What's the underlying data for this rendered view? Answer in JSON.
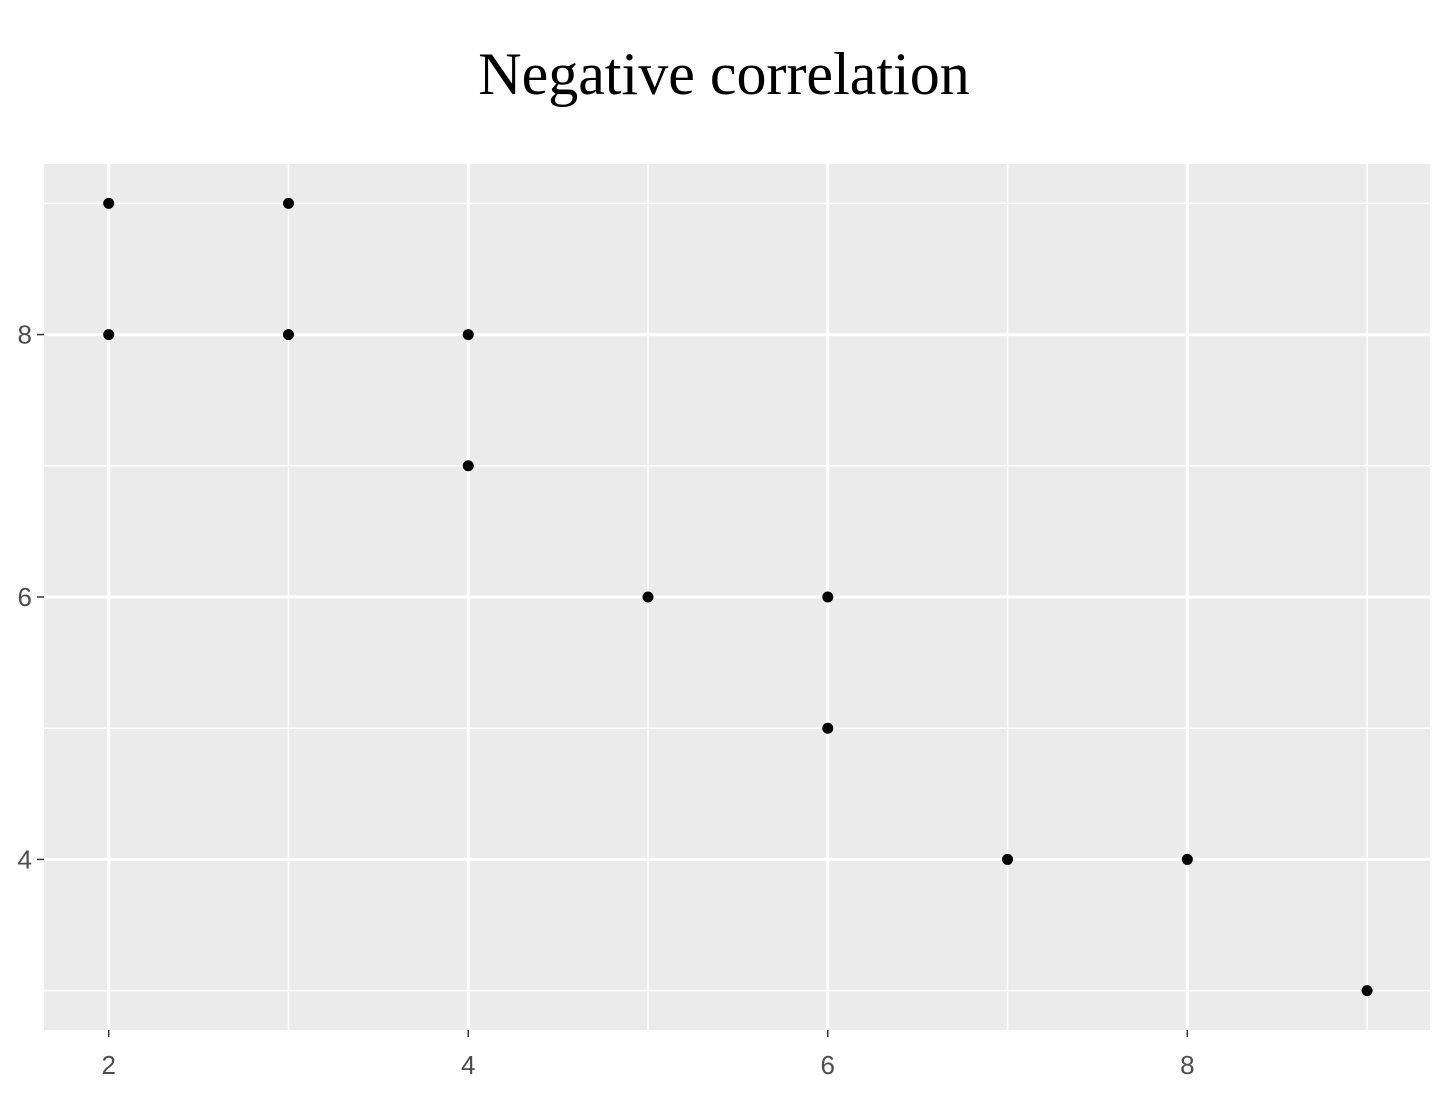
{
  "chart_data": {
    "type": "scatter",
    "title": "Negative correlation",
    "xlabel": "",
    "ylabel": "",
    "xlim": [
      1.64,
      9.35
    ],
    "ylim": [
      2.7,
      9.3
    ],
    "x_ticks": [
      2,
      4,
      6,
      8
    ],
    "y_ticks": [
      4,
      6,
      8
    ],
    "x_tick_labels": [
      "2",
      "4",
      "6",
      "8"
    ],
    "y_tick_labels": [
      "4",
      "6",
      "8"
    ],
    "x_minor_gridlines": [
      3,
      5,
      7,
      9
    ],
    "y_minor_gridlines": [
      3,
      5,
      7,
      9
    ],
    "grid": true,
    "legend": "none",
    "colors": {
      "panel_background": "#ebebeb",
      "gridline": "#ffffff",
      "point": "#000000",
      "tick_label": "#4d4d4d",
      "tick_mark": "#333333"
    },
    "points": [
      {
        "x": 2,
        "y": 9
      },
      {
        "x": 3,
        "y": 9
      },
      {
        "x": 2,
        "y": 8
      },
      {
        "x": 3,
        "y": 8
      },
      {
        "x": 4,
        "y": 8
      },
      {
        "x": 4,
        "y": 7
      },
      {
        "x": 5,
        "y": 6
      },
      {
        "x": 6,
        "y": 6
      },
      {
        "x": 6,
        "y": 5
      },
      {
        "x": 7,
        "y": 4
      },
      {
        "x": 8,
        "y": 4
      },
      {
        "x": 9,
        "y": 3
      }
    ]
  }
}
